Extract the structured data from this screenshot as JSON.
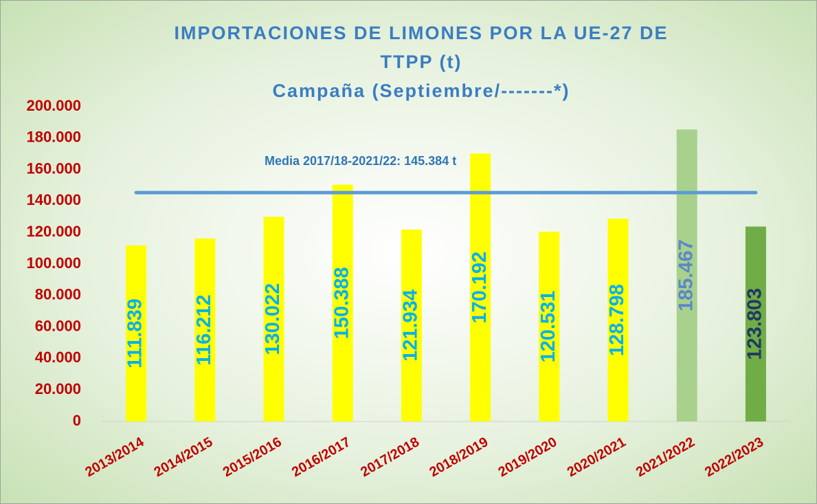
{
  "chart_data": {
    "type": "bar",
    "title": [
      "IMPORTACIONES DE LIMONES POR LA UE-27 DE",
      "TTPP (t)",
      "Campaña (Septiembre/-------*)"
    ],
    "categories": [
      "2013/2014",
      "2014/2015",
      "2015/2016",
      "2016/2017",
      "2017/2018",
      "2018/2019",
      "2019/2020",
      "2020/2021",
      "2021/2022",
      "2022/2023"
    ],
    "values": [
      111839,
      116212,
      130022,
      150388,
      121934,
      170192,
      120531,
      128798,
      185467,
      123803
    ],
    "value_labels": [
      "111.839",
      "116.212",
      "130.022",
      "150.388",
      "121.934",
      "170.192",
      "120.531",
      "128.798",
      "185.467",
      "123.803"
    ],
    "colors": [
      "#ffff00",
      "#ffff00",
      "#ffff00",
      "#ffff00",
      "#ffff00",
      "#ffff00",
      "#ffff00",
      "#ffff00",
      "#a9d18e",
      "#70ad47"
    ],
    "label_colors": [
      "#00b0f0",
      "#00b0f0",
      "#00b0f0",
      "#00b0f0",
      "#00b0f0",
      "#00b0f0",
      "#00b0f0",
      "#00b0f0",
      "#5b87c8",
      "#203864"
    ],
    "mean": {
      "value": 145384,
      "label": "Media 2017/18-2021/22: 145.384 t",
      "color": "#5b9bd5"
    },
    "ylim": [
      0,
      200000
    ],
    "yticks": [
      0,
      {
        "value": 20000,
        "label": "20.000"
      },
      {
        "value": 40000,
        "label": "40.000"
      },
      {
        "value": 60000,
        "label": "60.000"
      },
      {
        "value": 80000,
        "label": "80.000"
      },
      {
        "value": 100000,
        "label": "100.000"
      },
      {
        "value": 120000,
        "label": "120.000"
      },
      {
        "value": 140000,
        "label": "140.000"
      },
      {
        "value": 160000,
        "label": "160.000"
      },
      {
        "value": 180000,
        "label": "180.000"
      },
      {
        "value": 200000,
        "label": "200.000"
      }
    ],
    "grid": false
  }
}
